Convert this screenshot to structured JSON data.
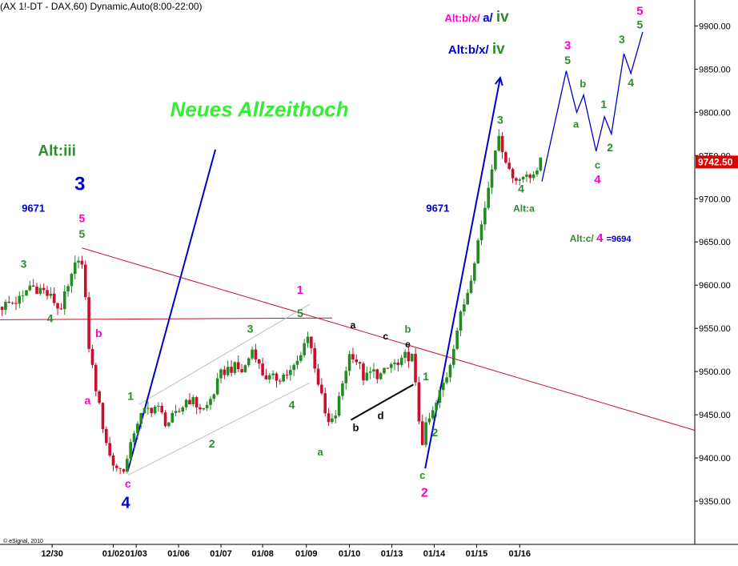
{
  "title": "(AX 1!-DT - DAX,60) Dynamic,Auto(8:00-22:00)",
  "watermark": "© eSignal, 2010",
  "colors": {
    "up": "#228b22",
    "down": "#c8102e",
    "trendline": "#c8102e",
    "wave_blue": "#0000cc",
    "price_tag_bg": "#e00000",
    "green_text": "#2e8b2e",
    "magenta": "#ff00cc",
    "bright_green": "#33ee33"
  },
  "chart_data": {
    "type": "candlestick",
    "title": "(AX 1!-DT - DAX,60) Dynamic,Auto(8:00-22:00)",
    "ylim": [
      9300,
      9930
    ],
    "xlim": [
      0,
      100
    ],
    "y_ticks": [
      9350,
      9400,
      9450,
      9500,
      9550,
      9600,
      9650,
      9700,
      9750,
      9800,
      9850,
      9900
    ],
    "y_tick_labels": [
      "9350.00",
      "9400.00",
      "9450.00",
      "9500.00",
      "9550.00",
      "9600.00",
      "9650.00",
      "9700.00",
      "9750.00",
      "9800.00",
      "9850.00",
      "9900.00"
    ],
    "x_ticks": [
      {
        "x": 7.5,
        "label": "12/30"
      },
      {
        "x": 16.3,
        "label": "01/02"
      },
      {
        "x": 19.6,
        "label": "01/03"
      },
      {
        "x": 25.7,
        "label": "01/06"
      },
      {
        "x": 31.8,
        "label": "01/07"
      },
      {
        "x": 37.8,
        "label": "01/08"
      },
      {
        "x": 44.1,
        "label": "01/09"
      },
      {
        "x": 50.3,
        "label": "01/10"
      },
      {
        "x": 56.4,
        "label": "01/13"
      },
      {
        "x": 62.5,
        "label": "01/14"
      },
      {
        "x": 68.6,
        "label": "01/15"
      },
      {
        "x": 74.8,
        "label": "01/16"
      }
    ],
    "last_price": "9742.50",
    "last_price_value": 9742.5,
    "price_anchors": [
      [
        0,
        9575
      ],
      [
        3.5,
        9585
      ],
      [
        4,
        9600
      ],
      [
        6,
        9595
      ],
      [
        8,
        9580
      ],
      [
        8.5,
        9570
      ],
      [
        10,
        9600
      ],
      [
        11.5,
        9640
      ],
      [
        12,
        9610
      ],
      [
        12.5,
        9560
      ],
      [
        13,
        9510
      ],
      [
        13.5,
        9500
      ],
      [
        14,
        9470
      ],
      [
        15,
        9430
      ],
      [
        16,
        9395
      ],
      [
        17.5,
        9385
      ],
      [
        18.5,
        9400
      ],
      [
        19.5,
        9440
      ],
      [
        21,
        9455
      ],
      [
        22.5,
        9460
      ],
      [
        24,
        9440
      ],
      [
        25.5,
        9450
      ],
      [
        27,
        9470
      ],
      [
        28.5,
        9460
      ],
      [
        29.5,
        9455
      ],
      [
        31,
        9480
      ],
      [
        32,
        9500
      ],
      [
        33.5,
        9505
      ],
      [
        35,
        9500
      ],
      [
        36.5,
        9530
      ],
      [
        37.5,
        9500
      ],
      [
        39,
        9490
      ],
      [
        40.5,
        9495
      ],
      [
        42,
        9500
      ],
      [
        43.5,
        9520
      ],
      [
        44,
        9550
      ],
      [
        45,
        9520
      ],
      [
        46,
        9480
      ],
      [
        46.8,
        9450
      ],
      [
        47.5,
        9435
      ],
      [
        48.5,
        9455
      ],
      [
        49.5,
        9495
      ],
      [
        50.5,
        9525
      ],
      [
        51.5,
        9510
      ],
      [
        52.5,
        9490
      ],
      [
        53.5,
        9500
      ],
      [
        55,
        9495
      ],
      [
        56.5,
        9510
      ],
      [
        57.5,
        9505
      ],
      [
        58.5,
        9520
      ],
      [
        59.5,
        9515
      ],
      [
        60,
        9460
      ],
      [
        60.8,
        9420
      ],
      [
        61.5,
        9440
      ],
      [
        62.5,
        9455
      ],
      [
        63.5,
        9480
      ],
      [
        64.5,
        9500
      ],
      [
        65.5,
        9540
      ],
      [
        66.5,
        9570
      ],
      [
        67.5,
        9600
      ],
      [
        68.5,
        9640
      ],
      [
        69.3,
        9670
      ],
      [
        70,
        9700
      ],
      [
        70.8,
        9740
      ],
      [
        71.5,
        9770
      ],
      [
        72.3,
        9760
      ],
      [
        73,
        9740
      ],
      [
        74,
        9720
      ],
      [
        75,
        9730
      ],
      [
        76,
        9720
      ],
      [
        77,
        9735
      ],
      [
        78,
        9742.5
      ]
    ],
    "trendlines": [
      {
        "name": "red-descending-trendline",
        "x1": 11.8,
        "y1": 9643,
        "x2": 100,
        "y2": 9432
      },
      {
        "name": "red-horizontal-line",
        "x1": 0,
        "y1": 9560,
        "x2": 47.8,
        "y2": 9562
      },
      {
        "name": "channel-lower",
        "x1": 18.4,
        "y1": 9380,
        "x2": 44.6,
        "y2": 9487
      },
      {
        "name": "channel-upper",
        "x1": 20,
        "y1": 9462,
        "x2": 44.6,
        "y2": 9578
      },
      {
        "name": "black-support-line",
        "x1": 50.5,
        "y1": 9444,
        "x2": 59.5,
        "y2": 9485
      },
      {
        "name": "blue-impulse-line-1",
        "x1": 18.4,
        "y1": 9385,
        "x2": 31,
        "y2": 9757
      },
      {
        "name": "blue-impulse-line-2",
        "x1": 61.2,
        "y1": 9388,
        "x2": 72,
        "y2": 9840
      }
    ],
    "projection_path": [
      [
        78,
        9720
      ],
      [
        81.5,
        9848
      ],
      [
        83,
        9800
      ],
      [
        84,
        9820
      ],
      [
        85.8,
        9755
      ],
      [
        87,
        9795
      ],
      [
        88,
        9775
      ],
      [
        89.8,
        9868
      ],
      [
        90.8,
        9845
      ],
      [
        92.5,
        9893
      ]
    ],
    "annotations": [
      {
        "text": "Neues Allzeithoch",
        "x": 24.5,
        "y": 9795,
        "color": "#33ee33",
        "size": 26,
        "italic": true
      },
      {
        "text": "Alt:iii",
        "x": 8.2,
        "y": 9750,
        "color": "#2e8b2e",
        "size": 19
      },
      {
        "text": "9671",
        "x": 4.8,
        "y": 9685,
        "color": "#0000cc",
        "size": 13
      },
      {
        "text": "9671",
        "x": 63,
        "y": 9685,
        "color": "#0000cc",
        "size": 13
      },
      {
        "text": "3",
        "x": 11.5,
        "y": 9710,
        "color": "#0000cc",
        "size": 24
      },
      {
        "text": "5",
        "x": 11.8,
        "y": 9673,
        "color": "#ff00cc",
        "size": 14
      },
      {
        "text": "5",
        "x": 11.8,
        "y": 9655,
        "color": "#2e8b2e",
        "size": 14
      },
      {
        "text": "3",
        "x": 3.4,
        "y": 9620,
        "color": "#2e8b2e",
        "size": 14
      },
      {
        "text": "4",
        "x": 7.2,
        "y": 9557,
        "color": "#2e8b2e",
        "size": 14
      },
      {
        "text": "b",
        "x": 14.2,
        "y": 9540,
        "color": "#ff00cc",
        "size": 14
      },
      {
        "text": "a",
        "x": 12.6,
        "y": 9462,
        "color": "#ff00cc",
        "size": 14
      },
      {
        "text": "1",
        "x": 18.8,
        "y": 9467,
        "color": "#2e8b2e",
        "size": 14
      },
      {
        "text": "c",
        "x": 18.4,
        "y": 9366,
        "color": "#ff00cc",
        "size": 14
      },
      {
        "text": "4",
        "x": 18.1,
        "y": 9342,
        "color": "#0000cc",
        "size": 20
      },
      {
        "text": "2",
        "x": 30.5,
        "y": 9412,
        "color": "#2e8b2e",
        "size": 14
      },
      {
        "text": "3",
        "x": 36,
        "y": 9545,
        "color": "#2e8b2e",
        "size": 14
      },
      {
        "text": "1",
        "x": 43.2,
        "y": 9590,
        "color": "#ff00cc",
        "size": 15
      },
      {
        "text": "5",
        "x": 43.2,
        "y": 9563,
        "color": "#2e8b2e",
        "size": 14
      },
      {
        "text": "4",
        "x": 42,
        "y": 9457,
        "color": "#2e8b2e",
        "size": 14
      },
      {
        "text": "a",
        "x": 46.1,
        "y": 9403,
        "color": "#2e8b2e",
        "size": 13
      },
      {
        "text": "a",
        "x": 50.8,
        "y": 9550,
        "color": "#000000",
        "size": 12
      },
      {
        "text": "b",
        "x": 51.2,
        "y": 9431,
        "color": "#000000",
        "size": 13
      },
      {
        "text": "c",
        "x": 55.5,
        "y": 9537,
        "color": "#000000",
        "size": 12
      },
      {
        "text": "d",
        "x": 54.8,
        "y": 9445,
        "color": "#000000",
        "size": 13
      },
      {
        "text": "b",
        "x": 58.7,
        "y": 9545,
        "color": "#2e8b2e",
        "size": 13
      },
      {
        "text": "e",
        "x": 58.7,
        "y": 9528,
        "color": "#000000",
        "size": 12
      },
      {
        "text": "1",
        "x": 61.3,
        "y": 9490,
        "color": "#2e8b2e",
        "size": 14
      },
      {
        "text": "2",
        "x": 62.6,
        "y": 9425,
        "color": "#2e8b2e",
        "size": 14
      },
      {
        "text": "c",
        "x": 60.8,
        "y": 9376,
        "color": "#2e8b2e",
        "size": 13
      },
      {
        "text": "2",
        "x": 61.1,
        "y": 9355,
        "color": "#ff00cc",
        "size": 16
      },
      {
        "text": "3",
        "x": 72,
        "y": 9787,
        "color": "#2e8b2e",
        "size": 14
      },
      {
        "text": "4",
        "x": 75,
        "y": 9707,
        "color": "#2e8b2e",
        "size": 14
      },
      {
        "text": "Alt:a",
        "x": 75.4,
        "y": 9685,
        "color": "#2e8b2e",
        "size": 12
      },
      {
        "text": "3",
        "x": 81.7,
        "y": 9873,
        "color": "#ff00cc",
        "size": 15
      },
      {
        "text": "5",
        "x": 81.7,
        "y": 9856,
        "color": "#2e8b2e",
        "size": 14
      },
      {
        "text": "b",
        "x": 83.9,
        "y": 9829,
        "color": "#2e8b2e",
        "size": 13
      },
      {
        "text": "a",
        "x": 82.9,
        "y": 9782,
        "color": "#2e8b2e",
        "size": 13
      },
      {
        "text": "1",
        "x": 86.9,
        "y": 9805,
        "color": "#2e8b2e",
        "size": 14
      },
      {
        "text": "2",
        "x": 87.8,
        "y": 9755,
        "color": "#2e8b2e",
        "size": 14
      },
      {
        "text": "c",
        "x": 86,
        "y": 9735,
        "color": "#2e8b2e",
        "size": 13
      },
      {
        "text": "4",
        "x": 86,
        "y": 9718,
        "color": "#ff00cc",
        "size": 15
      },
      {
        "text": "3",
        "x": 89.5,
        "y": 9880,
        "color": "#2e8b2e",
        "size": 14
      },
      {
        "text": "4",
        "x": 90.8,
        "y": 9830,
        "color": "#2e8b2e",
        "size": 14
      },
      {
        "text": "5",
        "x": 92.1,
        "y": 9913,
        "color": "#ff00cc",
        "size": 15
      },
      {
        "text": "5",
        "x": 92.1,
        "y": 9897,
        "color": "#2e8b2e",
        "size": 14
      }
    ],
    "wave_alternates": [
      {
        "parts": [
          {
            "text": "Alt:b/x/ ",
            "color": "#ff00cc",
            "size": 13
          },
          {
            "text": "a/ ",
            "color": "#0000cc",
            "size": 15
          },
          {
            "text": "iv",
            "color": "#2e8b2e",
            "size": 19
          }
        ],
        "x": 64,
        "y": 9905
      },
      {
        "parts": [
          {
            "text": "Alt:b/x/ ",
            "color": "#0000cc",
            "size": 15
          },
          {
            "text": "iv",
            "color": "#2e8b2e",
            "size": 19
          }
        ],
        "x": 64.5,
        "y": 9868
      },
      {
        "parts": [
          {
            "text": "Alt:c/ ",
            "color": "#2e8b2e",
            "size": 12
          },
          {
            "text": "4 ",
            "color": "#ff00cc",
            "size": 15
          },
          {
            "text": "=9694",
            "color": "#0000cc",
            "size": 11
          }
        ],
        "x": 82,
        "y": 9650
      }
    ]
  }
}
